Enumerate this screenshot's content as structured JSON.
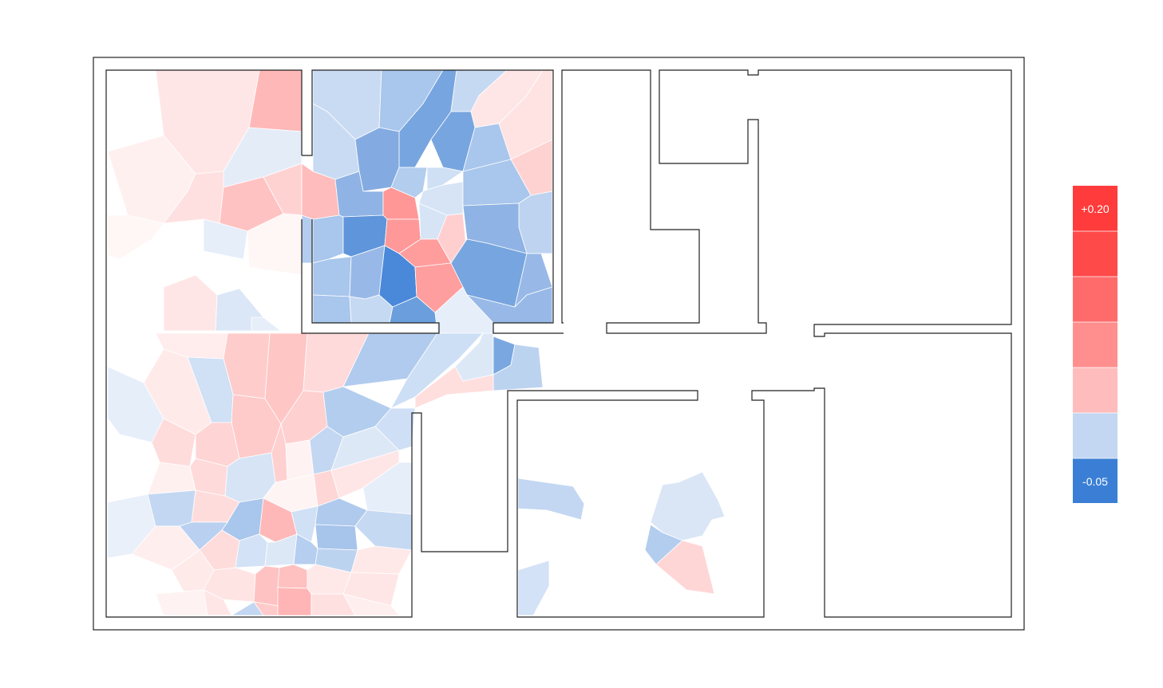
{
  "legend": {
    "max_label": "+0.20",
    "min_label": "-0.05",
    "colors": [
      "#ff3b3b",
      "#ff4a4a",
      "#ff6b6b",
      "#ff8f8f",
      "#ffbcbc",
      "#c3d7f2",
      "#3a7fd5"
    ]
  },
  "colors": {
    "wall": "#222222",
    "background": "#ffffff"
  }
}
